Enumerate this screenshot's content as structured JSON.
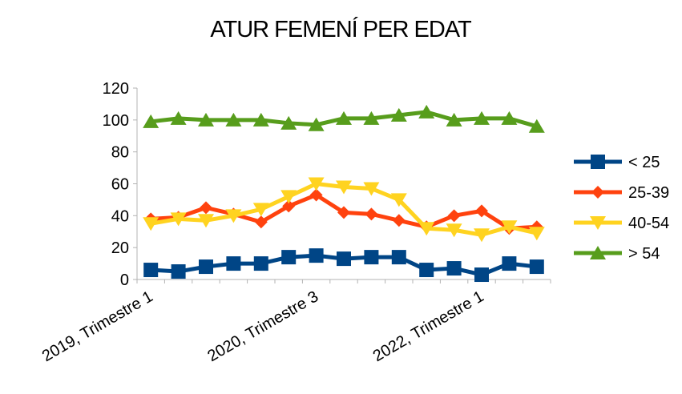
{
  "chart_data": {
    "type": "line",
    "title": "ATUR FEMENÍ PER EDAT",
    "categories": [
      "2019, Trimestre 1",
      null,
      null,
      null,
      null,
      null,
      "2020, Trimestre 3",
      null,
      null,
      null,
      null,
      null,
      "2022, Trimestre 1",
      null,
      null
    ],
    "series": [
      {
        "name": "< 25",
        "color": "#004586",
        "marker": "square",
        "values": [
          6,
          5,
          8,
          10,
          10,
          14,
          15,
          13,
          14,
          14,
          6,
          7,
          3,
          10,
          8
        ]
      },
      {
        "name": "25-39",
        "color": "#ff420e",
        "marker": "diamond",
        "values": [
          38,
          39,
          45,
          41,
          36,
          46,
          53,
          42,
          41,
          37,
          33,
          40,
          43,
          32,
          33
        ]
      },
      {
        "name": "40-54",
        "color": "#ffd320",
        "marker": "triangle-down",
        "values": [
          35,
          38,
          37,
          40,
          44,
          52,
          60,
          58,
          57,
          50,
          32,
          31,
          28,
          33,
          29
        ]
      },
      {
        "name": "> 54",
        "color": "#579d1c",
        "marker": "triangle-up",
        "values": [
          99,
          101,
          100,
          100,
          100,
          98,
          97,
          101,
          101,
          103,
          105,
          100,
          101,
          101,
          96
        ]
      }
    ],
    "ylim": [
      0,
      120
    ],
    "yticks": [
      0,
      20,
      40,
      60,
      80,
      100,
      120
    ],
    "grid": false,
    "legend": "right"
  }
}
